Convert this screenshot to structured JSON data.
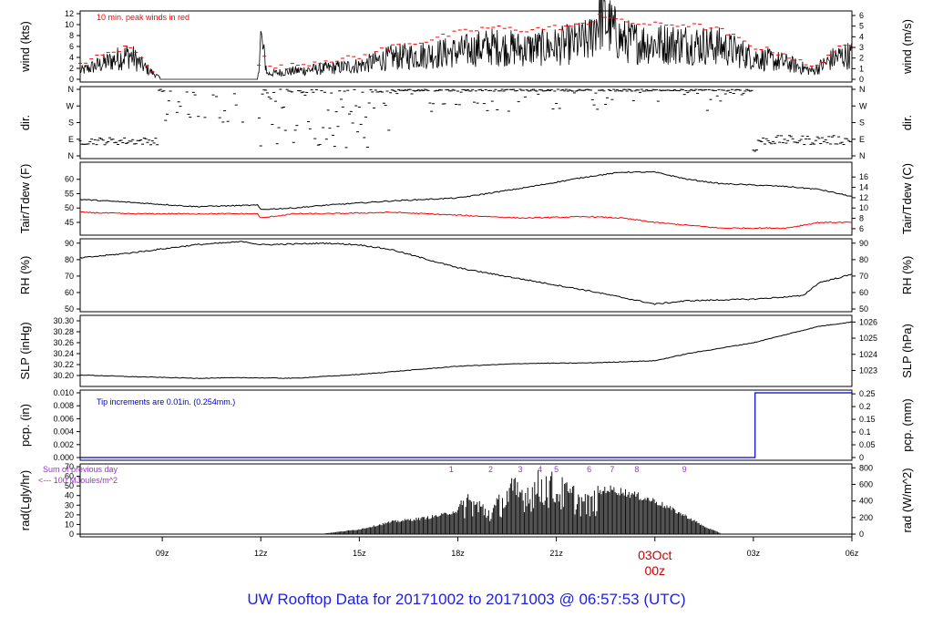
{
  "title": "UW Rooftop Data for 20171002  to  20171003 @ 06:57:53  (UTC)",
  "colors": {
    "trace": "#000000",
    "peak": "#ff0000",
    "dew": "#ff0000",
    "precip": "#0000cc",
    "annotation_purple": "#9933cc",
    "date_marker": "#cc0000",
    "title": "#2020e0"
  },
  "chart_data": [
    {
      "id": "wind",
      "type": "line",
      "ylabel": "wind (kts)",
      "ylabel_right": "wind (m/s)",
      "ylim": [
        0,
        12
      ],
      "yticks": [
        0,
        2,
        4,
        6,
        8,
        10,
        12
      ],
      "right_ylim": [
        0,
        6.17
      ],
      "right_yticks": [
        0,
        1,
        2,
        3,
        4,
        5,
        6
      ],
      "annotation": "10 min. peak winds in red",
      "x": [
        6.5,
        7.0,
        7.5,
        8.0,
        8.5,
        9.0,
        11.9,
        12.0,
        12.2,
        13.0,
        14.0,
        15.0,
        16.0,
        17.0,
        18.0,
        19.0,
        20.0,
        21.0,
        22.0,
        22.3,
        23.0,
        24.0,
        25.0,
        26.0,
        27.0,
        28.0,
        28.8,
        29.5,
        30.0
      ],
      "series": [
        {
          "values": [
            1.5,
            2.5,
            3.5,
            4.5,
            2.0,
            0.0,
            0.0,
            7.5,
            1.0,
            1.5,
            2.0,
            2.5,
            4.0,
            4.5,
            5.0,
            6.0,
            5.5,
            6.0,
            7.0,
            12.0,
            7.0,
            6.5,
            6.5,
            6.0,
            4.0,
            3.0,
            1.5,
            4.0,
            4.5
          ]
        }
      ],
      "peak_series": {
        "values": [
          3.0,
          4.0,
          5.0,
          6.0,
          3.0,
          0.0,
          0.0,
          7.5,
          2.0,
          2.5,
          3.5,
          4.0,
          6.0,
          7.0,
          8.5,
          9.5,
          9.0,
          9.5,
          10.0,
          12.0,
          10.5,
          10.0,
          10.0,
          9.0,
          6.0,
          4.5,
          2.0,
          5.5,
          6.0
        ]
      }
    },
    {
      "id": "dir",
      "type": "scatter",
      "ylabel": "dir.",
      "ylabel_right": "dir.",
      "yticks": [
        "N",
        "W",
        "S",
        "E",
        "N"
      ],
      "ylim": [
        0,
        360
      ]
    },
    {
      "id": "temp",
      "type": "line",
      "ylabel": "Tair/Tdew (F)",
      "ylabel_right": "Tair/Tdew (C)",
      "ylim": [
        41.5,
        65
      ],
      "yticks": [
        45,
        50,
        55,
        60
      ],
      "right_yticks": [
        6,
        8,
        10,
        12,
        14,
        16
      ],
      "x": [
        6.5,
        8.0,
        10.0,
        11.9,
        12.0,
        13.0,
        14.0,
        16.0,
        18.0,
        20.0,
        22.0,
        23.0,
        24.0,
        25.0,
        26.0,
        27.0,
        28.0,
        29.0,
        30.0
      ],
      "series": [
        {
          "values": [
            53.0,
            52.0,
            50.5,
            51.0,
            49.5,
            50.0,
            51.0,
            52.5,
            53.5,
            57.0,
            61.0,
            62.5,
            62.5,
            60.0,
            58.5,
            58.0,
            57.5,
            56.5,
            54.0
          ]
        },
        {
          "values": [
            48.5,
            48.0,
            48.0,
            48.0,
            46.5,
            48.0,
            48.0,
            48.5,
            47.5,
            46.5,
            47.0,
            46.5,
            45.0,
            44.0,
            43.0,
            43.0,
            43.0,
            45.0,
            45.0
          ]
        }
      ]
    },
    {
      "id": "rh",
      "type": "line",
      "ylabel": "RH (%)",
      "ylabel_right": "RH (%)",
      "ylim": [
        50,
        91
      ],
      "yticks": [
        50,
        60,
        70,
        80,
        90
      ],
      "x": [
        6.5,
        8.0,
        10.0,
        11.5,
        12.0,
        14.0,
        15.0,
        16.0,
        18.0,
        20.0,
        22.0,
        24.0,
        25.0,
        27.0,
        28.5,
        29.0,
        30.0
      ],
      "series": [
        {
          "values": [
            81,
            84,
            89,
            91,
            89,
            90,
            89,
            86,
            75,
            68,
            61,
            53,
            55,
            56,
            58,
            66,
            71
          ]
        }
      ]
    },
    {
      "id": "slp",
      "type": "line",
      "ylabel": "SLP (inHg)",
      "ylabel_right": "SLP (hPa)",
      "ylim": [
        30.185,
        30.305
      ],
      "yticks": [
        30.2,
        30.22,
        30.24,
        30.26,
        30.28,
        30.3
      ],
      "right_yticks": [
        1023,
        1024,
        1025,
        1026
      ],
      "x": [
        6.5,
        8.0,
        10.0,
        11.5,
        13.0,
        15.0,
        18.0,
        20.0,
        22.0,
        24.0,
        25.0,
        27.0,
        29.0,
        30.0
      ],
      "series": [
        {
          "values": [
            30.201,
            30.198,
            30.195,
            30.196,
            30.195,
            30.202,
            30.217,
            30.222,
            30.223,
            30.227,
            30.24,
            30.26,
            30.29,
            30.298
          ]
        }
      ]
    },
    {
      "id": "pcp",
      "type": "line",
      "ylabel": "pcp. (in)",
      "ylabel_right": "pcp. (mm)",
      "ylim": [
        0,
        0.01
      ],
      "yticks": [
        0.0,
        0.002,
        0.004,
        0.006,
        0.008,
        0.01
      ],
      "yticklabels": [
        "0.000",
        "0.002",
        "0.004",
        "0.006",
        "0.008",
        "0.010"
      ],
      "right_yticks": [
        0,
        0.05,
        0.1,
        0.15,
        0.2,
        0.25
      ],
      "annotation": "Tip increments are 0.01in. (0.254mm.)",
      "x": [
        6.5,
        27.05,
        27.05,
        30.0
      ],
      "series": [
        {
          "values": [
            0,
            0,
            0.01,
            0.01
          ]
        }
      ]
    },
    {
      "id": "rad",
      "type": "area",
      "ylabel": "rad(Lgly/hr)",
      "ylabel_right": "rad (W/m^2)",
      "ylim": [
        0,
        70
      ],
      "yticks": [
        0,
        10,
        20,
        30,
        40,
        50,
        60,
        70
      ],
      "right_yticks": [
        0,
        200,
        400,
        600,
        800
      ],
      "annotation": "Sum of previous day",
      "annotation2": "<--- 100 MJoules/m^2",
      "sample_marks": [
        "1",
        "2",
        "3",
        "4",
        "5",
        "6",
        "7",
        "8",
        "9"
      ],
      "sample_x": [
        17.8,
        19.0,
        19.9,
        20.5,
        21.0,
        22.0,
        22.7,
        23.45,
        24.9
      ],
      "x": [
        13.9,
        14.5,
        15.0,
        16.0,
        17.0,
        17.5,
        18.0,
        18.3,
        19.0,
        19.6,
        20.2,
        20.6,
        21.0,
        21.5,
        22.0,
        22.5,
        23.0,
        24.0,
        25.0,
        25.5,
        26.0
      ],
      "series": [
        {
          "values": [
            0.5,
            3,
            5,
            13,
            17,
            20,
            25,
            40,
            25,
            50,
            50,
            60,
            53,
            45,
            35,
            48,
            45,
            35,
            18,
            8,
            1
          ]
        }
      ]
    }
  ],
  "x_axis": {
    "range": [
      6.5,
      30.0
    ],
    "ticks": [
      9,
      12,
      15,
      18,
      21,
      24,
      27,
      30
    ],
    "ticklabels": [
      "09z",
      "12z",
      "15z",
      "18z",
      "21z",
      "03Oct",
      "03z",
      "06z"
    ],
    "date_marker_sub": "00z"
  }
}
